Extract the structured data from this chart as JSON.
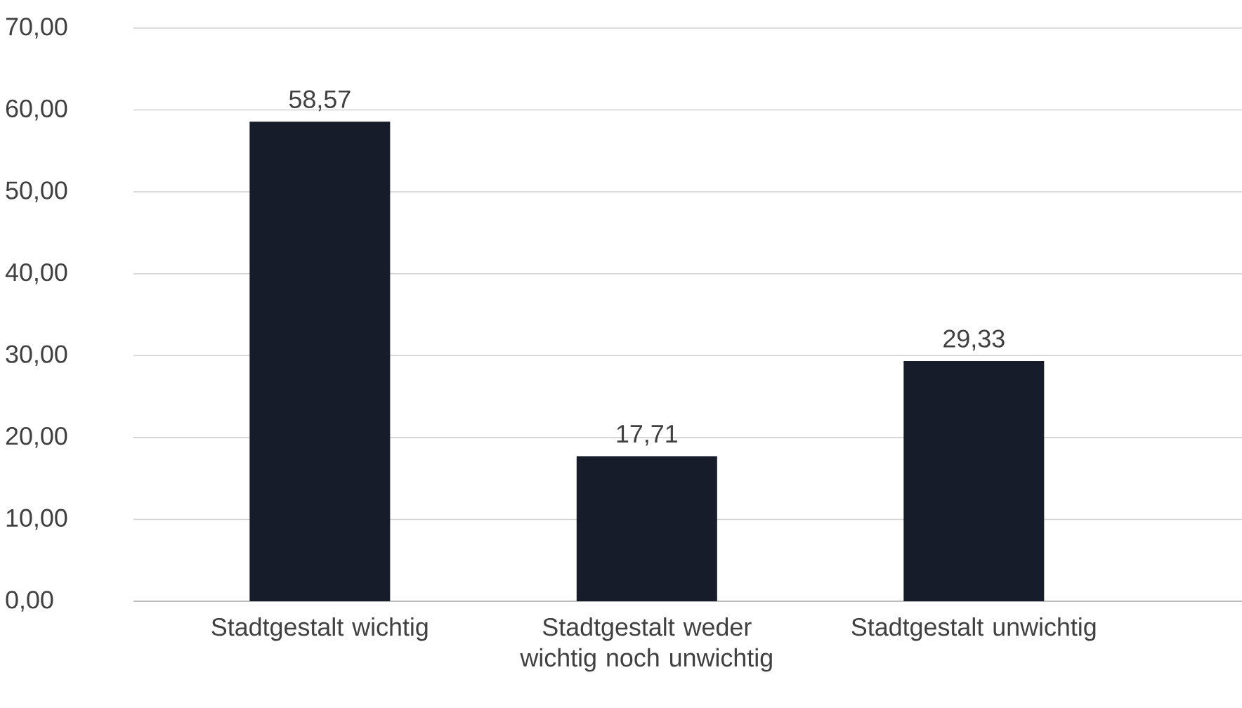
{
  "chart_data": {
    "type": "bar",
    "categories": [
      "Stadtgestalt wichtig",
      "Stadtgestalt weder wichtig noch unwichtig",
      "Stadtgestalt unwichtig"
    ],
    "values": [
      58.57,
      17.71,
      29.33
    ],
    "value_labels": [
      "58,57",
      "17,71",
      "29,33"
    ],
    "color": "#161c2a",
    "ylim": [
      0,
      70
    ],
    "yticks": [
      {
        "value": 0,
        "label": "0,00"
      },
      {
        "value": 10,
        "label": "10,00"
      },
      {
        "value": 20,
        "label": "20,00"
      },
      {
        "value": 30,
        "label": "30,00"
      },
      {
        "value": 40,
        "label": "40,00"
      },
      {
        "value": 50,
        "label": "50,00"
      },
      {
        "value": 60,
        "label": "60,00"
      },
      {
        "value": 70,
        "label": "70,00"
      }
    ],
    "grid": "y"
  }
}
